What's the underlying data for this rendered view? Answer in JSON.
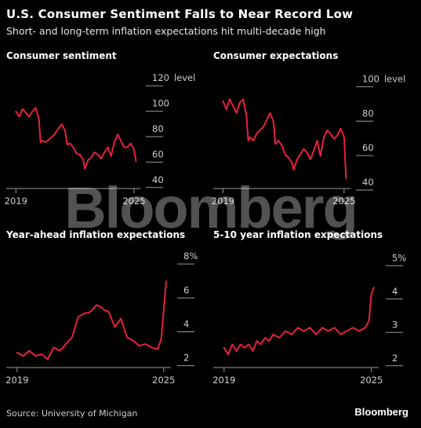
{
  "title": "U.S. Consumer Sentiment Falls to Near Record Low",
  "subtitle": "Short- and long-term inflation expectations hit multi-decade high",
  "source": "Source: University of Michigan",
  "brand": "Bloomberg",
  "watermark": "Bloomberg",
  "colors": {
    "line": "#e8203a",
    "axis": "#9a9a9a",
    "background": "#000000"
  },
  "chart_data": [
    {
      "type": "line",
      "title": "Consumer sentiment",
      "unit": "level",
      "x_ticks": [
        "2019",
        "2025"
      ],
      "xlim": [
        2018.75,
        2025.2
      ],
      "ylim": [
        38,
        122
      ],
      "y_ticks": [
        40,
        60,
        80,
        100,
        120
      ],
      "x": [
        2019.0,
        2019.17,
        2019.33,
        2019.5,
        2019.67,
        2019.83,
        2020.0,
        2020.17,
        2020.25,
        2020.33,
        2020.5,
        2020.67,
        2020.83,
        2021.0,
        2021.17,
        2021.33,
        2021.5,
        2021.6,
        2021.75,
        2021.92,
        2022.08,
        2022.25,
        2022.42,
        2022.5,
        2022.67,
        2022.83,
        2023.0,
        2023.17,
        2023.33,
        2023.5,
        2023.67,
        2023.83,
        2024.0,
        2024.17,
        2024.33,
        2024.5,
        2024.67,
        2024.83,
        2025.0,
        2025.1
      ],
      "y": [
        96,
        92,
        98,
        95,
        92,
        96,
        99,
        90,
        72,
        73,
        72,
        74,
        76,
        79,
        83,
        86,
        81,
        70,
        71,
        68,
        63,
        62,
        58,
        51,
        58,
        60,
        64,
        62,
        59,
        64,
        68,
        61,
        72,
        78,
        73,
        68,
        68,
        71,
        66,
        57
      ]
    },
    {
      "type": "line",
      "title": "Consumer expectations",
      "unit": "level",
      "x_ticks": [
        "2019",
        "2025"
      ],
      "xlim": [
        2018.75,
        2025.2
      ],
      "ylim": [
        40,
        102
      ],
      "y_ticks": [
        40,
        60,
        80,
        100
      ],
      "x": [
        2019.0,
        2019.17,
        2019.33,
        2019.5,
        2019.67,
        2019.83,
        2020.0,
        2020.17,
        2020.25,
        2020.33,
        2020.5,
        2020.67,
        2020.83,
        2021.0,
        2021.17,
        2021.33,
        2021.5,
        2021.6,
        2021.75,
        2021.92,
        2022.08,
        2022.25,
        2022.42,
        2022.5,
        2022.67,
        2022.83,
        2023.0,
        2023.17,
        2023.33,
        2023.5,
        2023.67,
        2023.83,
        2024.0,
        2024.17,
        2024.33,
        2024.5,
        2024.67,
        2024.83,
        2025.0,
        2025.1
      ],
      "y": [
        89,
        84,
        90,
        86,
        82,
        88,
        90,
        80,
        66,
        68,
        66,
        70,
        72,
        74,
        78,
        82,
        77,
        64,
        66,
        63,
        58,
        56,
        53,
        49,
        55,
        58,
        61,
        59,
        55,
        60,
        66,
        57,
        68,
        72,
        70,
        67,
        69,
        73,
        68,
        44
      ]
    },
    {
      "type": "line",
      "title": "Year-ahead inflation expectations",
      "unit": "%",
      "x_ticks": [
        "2019",
        "2025"
      ],
      "xlim": [
        2018.75,
        2025.2
      ],
      "ylim": [
        1.8,
        8.1
      ],
      "y_ticks": [
        2,
        4,
        6,
        8
      ],
      "y_tick_labels": [
        "2",
        "4",
        "6",
        "8%"
      ],
      "x": [
        2019.0,
        2019.25,
        2019.5,
        2019.75,
        2020.0,
        2020.25,
        2020.5,
        2020.75,
        2021.0,
        2021.25,
        2021.5,
        2021.75,
        2022.0,
        2022.25,
        2022.42,
        2022.58,
        2022.75,
        2023.0,
        2023.25,
        2023.5,
        2023.75,
        2024.0,
        2024.25,
        2024.5,
        2024.75,
        2024.9,
        2025.0,
        2025.1
      ],
      "y": [
        2.5,
        2.3,
        2.6,
        2.3,
        2.4,
        2.1,
        2.8,
        2.6,
        3.0,
        3.4,
        4.6,
        4.8,
        4.9,
        5.3,
        5.2,
        5.0,
        4.9,
        4.0,
        4.5,
        3.4,
        3.2,
        2.9,
        3.0,
        2.8,
        2.7,
        3.3,
        5.0,
        6.7
      ]
    },
    {
      "type": "line",
      "title": "5-10 year inflation expectations",
      "unit": "%",
      "x_ticks": [
        "2019",
        "2025"
      ],
      "xlim": [
        2018.75,
        2025.2
      ],
      "ylim": [
        1.9,
        5.1
      ],
      "y_ticks": [
        2,
        3,
        4,
        5
      ],
      "y_tick_labels": [
        "2",
        "3",
        "4",
        "5%"
      ],
      "x": [
        2019.0,
        2019.17,
        2019.33,
        2019.5,
        2019.67,
        2019.83,
        2020.0,
        2020.17,
        2020.33,
        2020.5,
        2020.67,
        2020.83,
        2021.0,
        2021.25,
        2021.5,
        2021.75,
        2022.0,
        2022.25,
        2022.5,
        2022.75,
        2023.0,
        2023.25,
        2023.5,
        2023.75,
        2024.0,
        2024.25,
        2024.5,
        2024.75,
        2024.9,
        2025.0,
        2025.1
      ],
      "y": [
        2.4,
        2.2,
        2.5,
        2.3,
        2.5,
        2.4,
        2.5,
        2.3,
        2.6,
        2.5,
        2.7,
        2.6,
        2.8,
        2.7,
        2.9,
        2.8,
        3.0,
        2.9,
        3.0,
        2.8,
        3.0,
        2.9,
        3.0,
        2.8,
        2.9,
        3.0,
        2.9,
        3.0,
        3.2,
        4.0,
        4.2
      ]
    }
  ]
}
